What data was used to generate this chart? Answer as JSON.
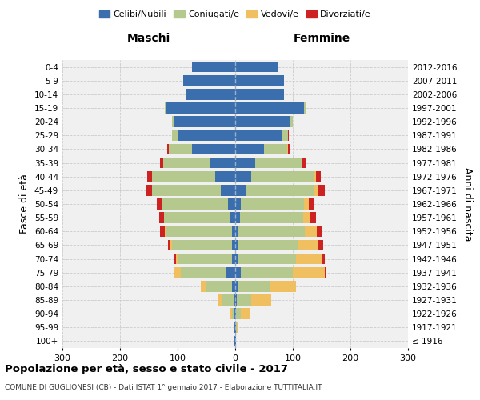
{
  "age_groups": [
    "100+",
    "95-99",
    "90-94",
    "85-89",
    "80-84",
    "75-79",
    "70-74",
    "65-69",
    "60-64",
    "55-59",
    "50-54",
    "45-49",
    "40-44",
    "35-39",
    "30-34",
    "25-29",
    "20-24",
    "15-19",
    "10-14",
    "5-9",
    "0-4"
  ],
  "birth_years": [
    "≤ 1916",
    "1917-1921",
    "1922-1926",
    "1927-1931",
    "1932-1936",
    "1937-1941",
    "1942-1946",
    "1947-1951",
    "1952-1956",
    "1957-1961",
    "1962-1966",
    "1967-1971",
    "1972-1976",
    "1977-1981",
    "1982-1986",
    "1987-1991",
    "1992-1996",
    "1997-2001",
    "2002-2006",
    "2007-2011",
    "2012-2016"
  ],
  "male": {
    "celibi": [
      1,
      1,
      1,
      3,
      5,
      15,
      5,
      5,
      6,
      8,
      12,
      25,
      35,
      45,
      75,
      100,
      105,
      120,
      85,
      90,
      75
    ],
    "coniugati": [
      0,
      2,
      5,
      20,
      45,
      80,
      95,
      105,
      115,
      115,
      115,
      120,
      110,
      80,
      40,
      10,
      5,
      2,
      0,
      0,
      0
    ],
    "vedovi": [
      0,
      0,
      2,
      8,
      10,
      10,
      3,
      2,
      1,
      1,
      1,
      0,
      0,
      0,
      0,
      0,
      0,
      0,
      0,
      0,
      0
    ],
    "divorziati": [
      0,
      0,
      0,
      0,
      0,
      0,
      2,
      5,
      8,
      8,
      8,
      10,
      8,
      5,
      3,
      0,
      0,
      0,
      0,
      0,
      0
    ]
  },
  "female": {
    "nubili": [
      1,
      1,
      2,
      3,
      5,
      10,
      5,
      5,
      6,
      8,
      10,
      18,
      28,
      35,
      50,
      80,
      95,
      120,
      85,
      85,
      75
    ],
    "coniugate": [
      0,
      2,
      8,
      25,
      55,
      90,
      100,
      105,
      115,
      110,
      110,
      120,
      110,
      80,
      40,
      12,
      5,
      2,
      0,
      0,
      0
    ],
    "vedove": [
      1,
      3,
      15,
      35,
      45,
      55,
      45,
      35,
      20,
      12,
      8,
      5,
      2,
      2,
      1,
      0,
      0,
      0,
      0,
      0,
      0
    ],
    "divorziate": [
      0,
      0,
      0,
      0,
      0,
      2,
      5,
      8,
      10,
      10,
      10,
      12,
      8,
      5,
      3,
      1,
      0,
      0,
      0,
      0,
      0
    ]
  },
  "colors": {
    "celibi": "#3a6eac",
    "coniugati": "#b5c98e",
    "vedovi": "#f0c060",
    "divorziati": "#cc2222"
  },
  "title": "Popolazione per età, sesso e stato civile - 2017",
  "subtitle": "COMUNE DI GUGLIONESI (CB) - Dati ISTAT 1° gennaio 2017 - Elaborazione TUTTITALIA.IT",
  "xlabel_left": "Maschi",
  "xlabel_right": "Femmine",
  "ylabel_left": "Fasce di età",
  "ylabel_right": "Anni di nascita",
  "xlim": 300,
  "legend_labels": [
    "Celibi/Nubili",
    "Coniugati/e",
    "Vedovi/e",
    "Divorziati/e"
  ],
  "bg_color": "#f0f0f0",
  "grid_color": "#cccccc"
}
